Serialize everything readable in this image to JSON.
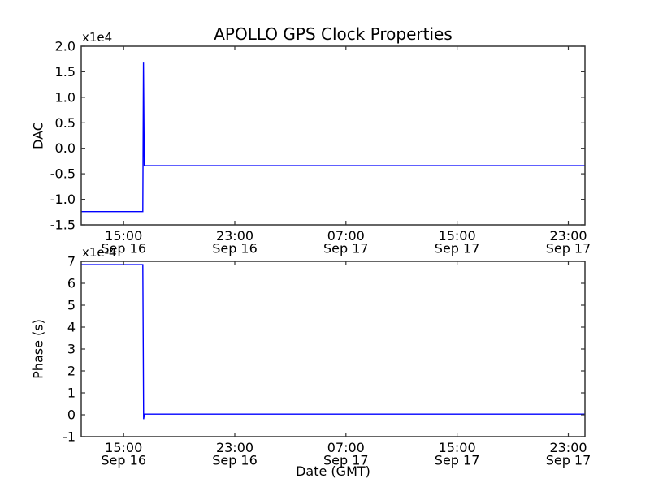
{
  "figure": {
    "title": "APOLLO GPS Clock Properties",
    "background": "#ffffff",
    "axis_color": "#333333",
    "line_color": "#0000ff"
  },
  "chart_data": [
    {
      "type": "line",
      "title": "APOLLO GPS Clock Properties",
      "ylabel": "DAC",
      "xlabel": "",
      "offset_label": "x1e4",
      "y_multiplier": 10000,
      "x_axis_note": "hours since Sep 16 00:00 GMT",
      "xlim": [
        11.95,
        48.2
      ],
      "ylim": [
        -1.5,
        2.0
      ],
      "grid": false,
      "legend": null,
      "yticks": [
        -1.5,
        -1.0,
        -0.5,
        0.0,
        0.5,
        1.0,
        1.5,
        2.0
      ],
      "ytick_labels": [
        "-1.5",
        "-1.0",
        "-0.5",
        "0.0",
        "0.5",
        "1.0",
        "1.5",
        "2.0"
      ],
      "xticks": [
        15,
        23,
        31,
        39,
        47
      ],
      "xtick_labels": [
        [
          "15:00",
          "Sep 16"
        ],
        [
          "23:00",
          "Sep 16"
        ],
        [
          "07:00",
          "Sep 17"
        ],
        [
          "15:00",
          "Sep 17"
        ],
        [
          "23:00",
          "Sep 17"
        ]
      ],
      "series": [
        {
          "name": "DAC",
          "color": "#0000ff",
          "points": [
            [
              11.95,
              -1.24
            ],
            [
              16.38,
              -1.24
            ],
            [
              16.43,
              1.68
            ],
            [
              16.49,
              -0.34
            ],
            [
              48.2,
              -0.34
            ]
          ]
        }
      ]
    },
    {
      "type": "line",
      "title": "",
      "ylabel": "Phase (s)",
      "xlabel": "Date (GMT)",
      "offset_label": "x1e-4",
      "y_multiplier": 0.0001,
      "x_axis_note": "hours since Sep 16 00:00 GMT",
      "xlim": [
        11.95,
        48.2
      ],
      "ylim": [
        -1,
        7
      ],
      "grid": false,
      "legend": null,
      "yticks": [
        -1,
        0,
        1,
        2,
        3,
        4,
        5,
        6,
        7
      ],
      "ytick_labels": [
        "-1",
        "0",
        "1",
        "2",
        "3",
        "4",
        "5",
        "6",
        "7"
      ],
      "xticks": [
        15,
        23,
        31,
        39,
        47
      ],
      "xtick_labels": [
        [
          "15:00",
          "Sep 16"
        ],
        [
          "23:00",
          "Sep 16"
        ],
        [
          "07:00",
          "Sep 17"
        ],
        [
          "15:00",
          "Sep 17"
        ],
        [
          "23:00",
          "Sep 17"
        ]
      ],
      "series": [
        {
          "name": "Phase (s)",
          "color": "#0000ff",
          "points": [
            [
              11.95,
              6.85
            ],
            [
              16.38,
              6.85
            ],
            [
              16.44,
              -0.2
            ],
            [
              16.5,
              0.03
            ],
            [
              48.2,
              0.03
            ]
          ]
        }
      ]
    }
  ]
}
